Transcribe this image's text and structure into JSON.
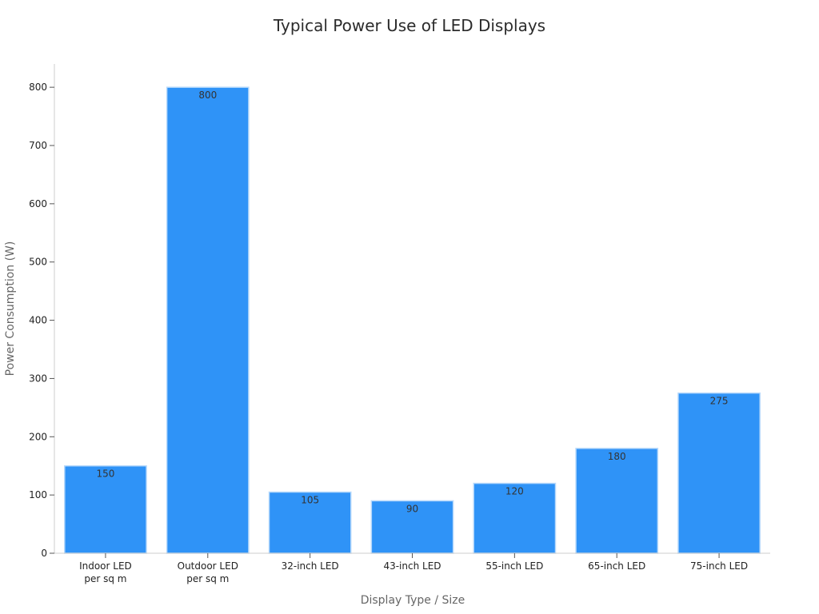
{
  "chart_data": {
    "type": "bar",
    "title": "Typical Power Use of LED Displays",
    "xlabel": "Display Type / Size",
    "ylabel": "Power Consumption (W)",
    "categories": [
      [
        "Indoor LED",
        "per sq m"
      ],
      [
        "Outdoor LED",
        "per sq m"
      ],
      [
        "32-inch LED"
      ],
      [
        "43-inch LED"
      ],
      [
        "55-inch LED"
      ],
      [
        "65-inch LED"
      ],
      [
        "75-inch LED"
      ]
    ],
    "values": [
      150,
      800,
      105,
      90,
      120,
      180,
      275
    ],
    "data_labels": [
      "150",
      "800",
      "105",
      "90",
      "120",
      "180",
      "275"
    ],
    "ylim": [
      0,
      840
    ],
    "yticks": [
      0,
      100,
      200,
      300,
      400,
      500,
      600,
      700,
      800
    ],
    "grid": false,
    "legend": "none",
    "colors": {
      "bar": "#2f93f7",
      "bar_edge": "#b7d9fb",
      "axis": "#cccccc",
      "tick": "#555555"
    }
  }
}
